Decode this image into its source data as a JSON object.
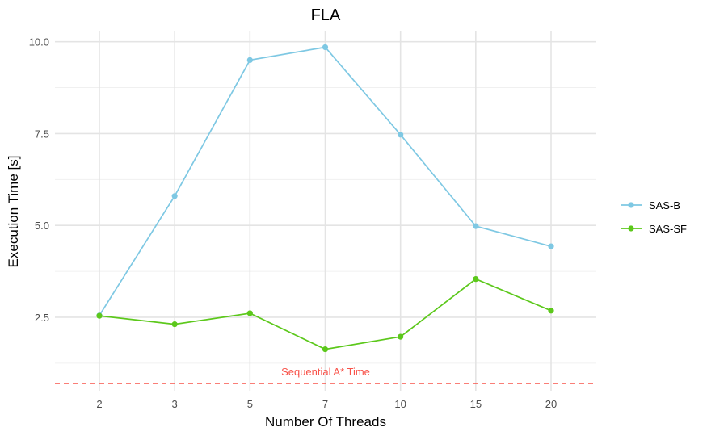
{
  "chart_data": {
    "type": "line",
    "title": "FLA",
    "xlabel": "Number Of Threads",
    "ylabel": "Execution Time [s]",
    "categories": [
      "2",
      "3",
      "5",
      "7",
      "10",
      "15",
      "20"
    ],
    "y_ticks": [
      "2.5",
      "5.0",
      "7.5",
      "10.0"
    ],
    "y_tick_values": [
      2.5,
      5.0,
      7.5,
      10.0
    ],
    "ylim": [
      0.5,
      10.3
    ],
    "grid": true,
    "legend_position": "right",
    "series": [
      {
        "name": "SAS-B",
        "color": "#7ec8e3",
        "values": [
          2.55,
          5.8,
          9.5,
          9.85,
          7.47,
          4.98,
          4.43
        ]
      },
      {
        "name": "SAS-SF",
        "color": "#5cc81b",
        "values": [
          2.54,
          2.31,
          2.61,
          1.63,
          1.97,
          3.54,
          2.68
        ]
      }
    ],
    "reference_line": {
      "label": "Sequential A* Time",
      "value": 0.7,
      "color": "#f8534a",
      "style": "dashed"
    }
  }
}
